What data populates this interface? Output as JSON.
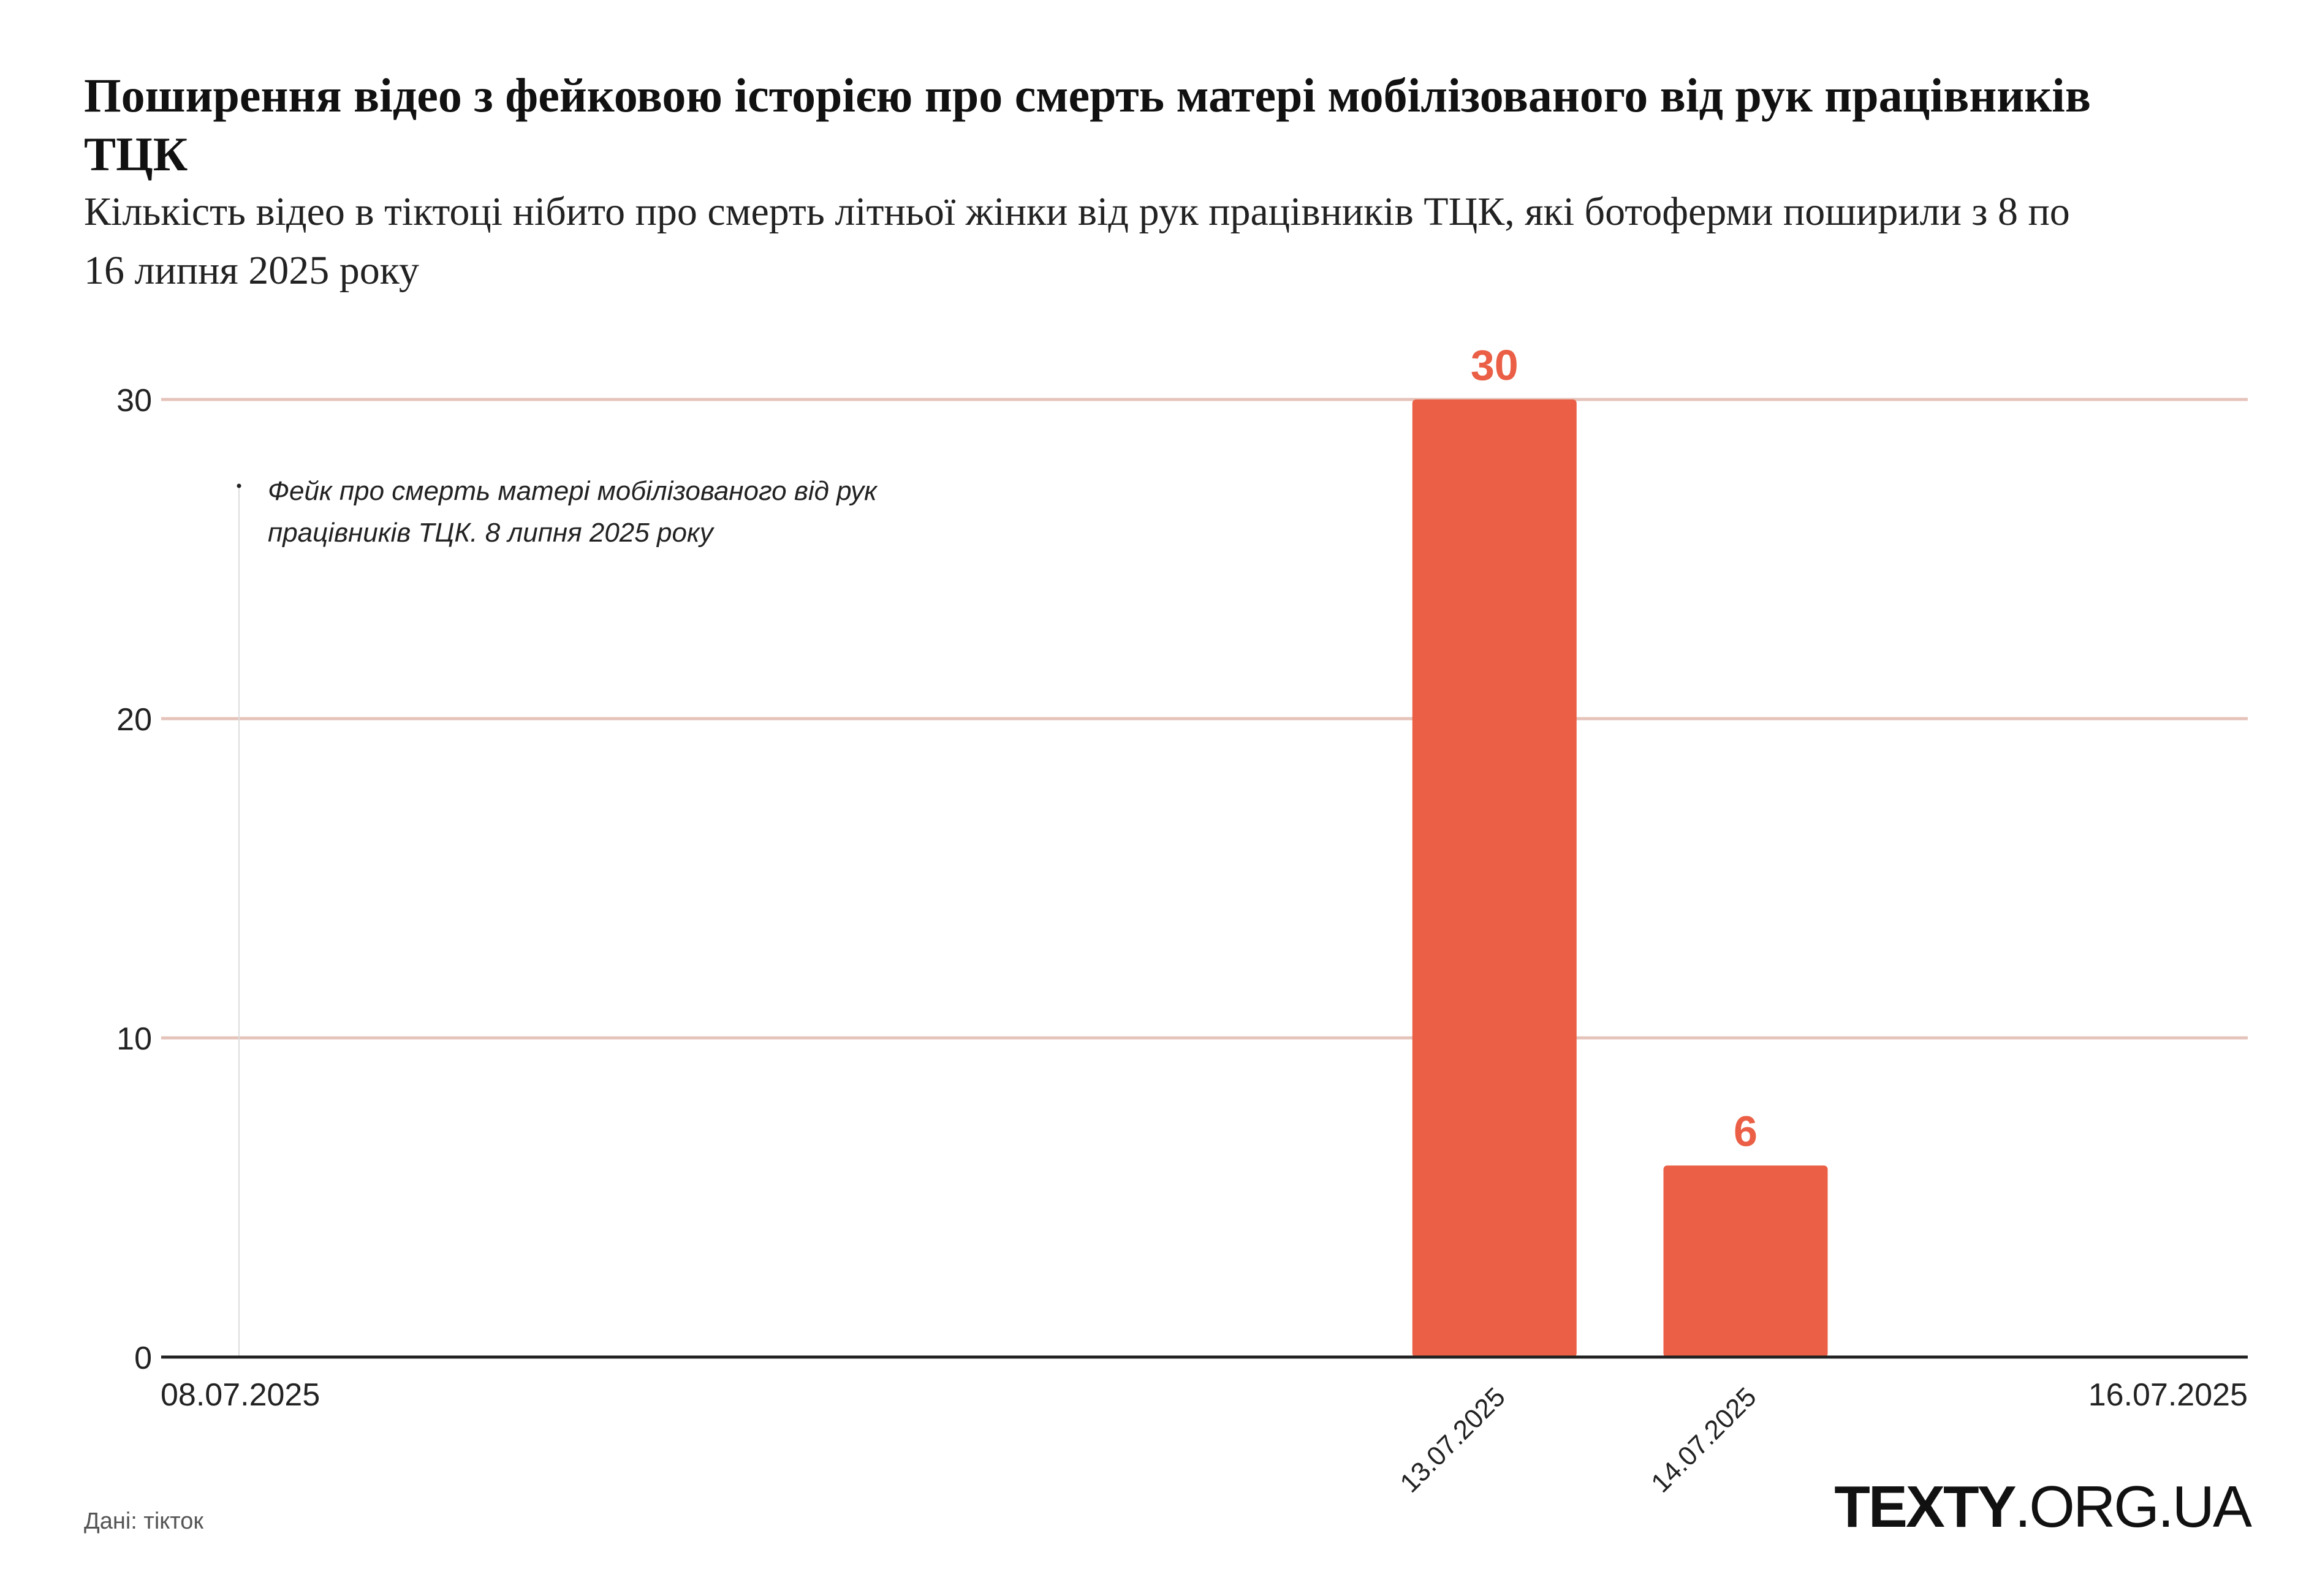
{
  "title": "Поширення відео з фейковою історією про смерть матері мобілізованого від рук працівників ТЦК",
  "subtitle": "Кількість відео в тіктоці нібито про смерть літньої жінки від рук працівників ТЦК, які ботоферми поширили з 8 по 16 липня 2025 року",
  "source": "Дані: тікток",
  "logo": {
    "brand": "TEXTY",
    "domain": ".ORG.UA"
  },
  "colors": {
    "bar": "#EA5F45",
    "grid": "#E5C3BA",
    "axis": "#222222",
    "annotation_line": "#DDDDDD"
  },
  "chart_data": {
    "type": "bar",
    "title": "Поширення відео з фейковою історією про смерть матері мобілізованого від рук працівників ТЦК",
    "xlabel": "",
    "ylabel": "",
    "ylim": [
      0,
      30
    ],
    "yticks": [
      0,
      10,
      20,
      30
    ],
    "grid": true,
    "x_range": [
      "08.07.2025",
      "16.07.2025"
    ],
    "x_start_label": "08.07.2025",
    "x_end_label": "16.07.2025",
    "categories": [
      "13.07.2025",
      "14.07.2025"
    ],
    "values": [
      30,
      6
    ],
    "day_index": [
      5,
      6
    ],
    "annotation": {
      "day_index": 0,
      "date": "08.07.2025",
      "line1": "Фейк про смерть матері мобілізованого від рук",
      "line2": "працівників ТЦК. 8 липня 2025 року"
    }
  }
}
